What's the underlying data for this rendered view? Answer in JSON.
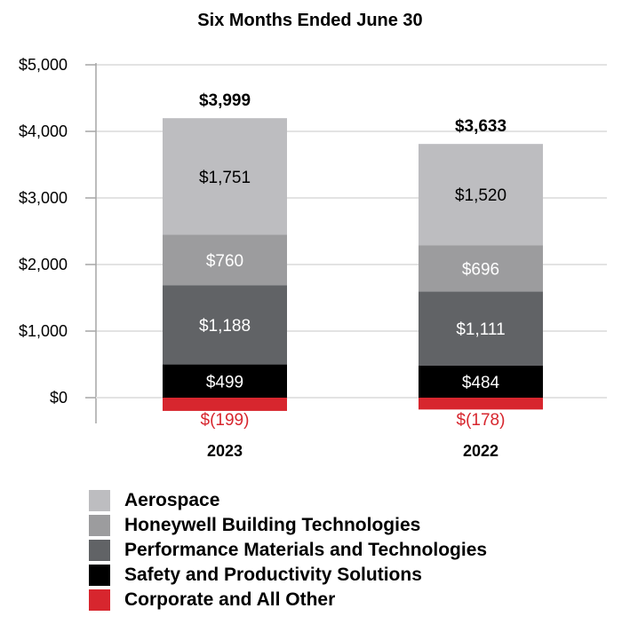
{
  "chart_data": {
    "type": "bar",
    "stacked": true,
    "title": "Six Months Ended June 30",
    "categories": [
      "2023",
      "2022"
    ],
    "ylim": [
      -400,
      5000
    ],
    "yticks": [
      0,
      1000,
      2000,
      3000,
      4000,
      5000
    ],
    "ytick_labels": [
      "$0",
      "$1,000",
      "$2,000",
      "$3,000",
      "$4,000",
      "$5,000"
    ],
    "grid": true,
    "legend_position": "bottom",
    "series": [
      {
        "name": "Corporate and All Other",
        "color": "#d7262e",
        "values": [
          -199,
          -178
        ],
        "labels": [
          "$(199)",
          "$(178)"
        ],
        "label_color": "#d7262e"
      },
      {
        "name": "Safety and Productivity Solutions",
        "color": "#000000",
        "values": [
          499,
          484
        ],
        "labels": [
          "$499",
          "$484"
        ],
        "label_color": "#ffffff"
      },
      {
        "name": "Performance Materials and Technologies",
        "color": "#616366",
        "values": [
          1188,
          1111
        ],
        "labels": [
          "$1,188",
          "$1,111"
        ],
        "label_color": "#ffffff"
      },
      {
        "name": "Honeywell Building Technologies",
        "color": "#9c9c9e",
        "values": [
          760,
          696
        ],
        "labels": [
          "$760",
          "$696"
        ],
        "label_color": "#ffffff"
      },
      {
        "name": "Aerospace",
        "color": "#bdbdc0",
        "values": [
          1751,
          1520
        ],
        "labels": [
          "$1,751",
          "$1,520"
        ],
        "label_color": "#000000"
      }
    ],
    "totals": [
      3999,
      3633
    ],
    "total_labels": [
      "$3,999",
      "$3,633"
    ],
    "legend_order": [
      "Aerospace",
      "Honeywell Building Technologies",
      "Performance Materials and Technologies",
      "Safety and Productivity Solutions",
      "Corporate and All Other"
    ]
  }
}
